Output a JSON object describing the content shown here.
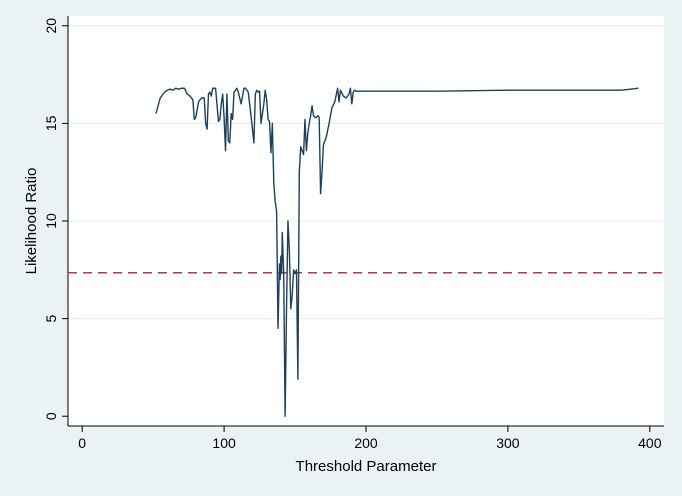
{
  "chart_data": {
    "type": "line",
    "title": "",
    "xlabel": "Threshold Parameter",
    "ylabel": "Likelihood Ratio",
    "xlim": [
      -10,
      410
    ],
    "ylim": [
      -0.5,
      20.5
    ],
    "xticks": [
      0,
      100,
      200,
      300,
      400
    ],
    "yticks": [
      0,
      5,
      10,
      15,
      20
    ],
    "xtick_labels": [
      "0",
      "100",
      "200",
      "300",
      "400"
    ],
    "ytick_labels": [
      "0",
      "5",
      "10",
      "15",
      "20"
    ],
    "grid": "horizontal",
    "legend": "none",
    "reference_line": {
      "y": 7.35,
      "style": "dashed",
      "color": "#c0324a"
    },
    "colors": {
      "series": "#1f3f5a",
      "background": "#eaf2f3",
      "plot_area": "#ffffff",
      "grid": "#e3eef0"
    },
    "series": [
      {
        "x": [
          52,
          55,
          58,
          60,
          62,
          64,
          66,
          68,
          70,
          72,
          74,
          76,
          78,
          79,
          80,
          82,
          84,
          86,
          87,
          88,
          89,
          90,
          91,
          92,
          94,
          96,
          97,
          98,
          99,
          100,
          101,
          102,
          103,
          104,
          105,
          106,
          107,
          108,
          109,
          110,
          112,
          114,
          115,
          116,
          117,
          118,
          120,
          121,
          122,
          123,
          124,
          125,
          126,
          127,
          128,
          129,
          130,
          131,
          132,
          133,
          134,
          135,
          136,
          137,
          138,
          139,
          139.5,
          140,
          140.5,
          141,
          142,
          143,
          144,
          145,
          146,
          147,
          148,
          149,
          150,
          151,
          152,
          153,
          154,
          155,
          156,
          157,
          158,
          159,
          160,
          161,
          162,
          163,
          164,
          165,
          166,
          167,
          168,
          169,
          170,
          171,
          172,
          174,
          176,
          178,
          180,
          181,
          182,
          184,
          186,
          188,
          189,
          190,
          191,
          192,
          193,
          200,
          250,
          300,
          350,
          380,
          392
        ],
        "y": [
          15.5,
          16.3,
          16.6,
          16.7,
          16.75,
          16.7,
          16.8,
          16.75,
          16.8,
          16.8,
          16.5,
          16.4,
          16.2,
          15.2,
          15.3,
          16.1,
          16.3,
          16.3,
          15.0,
          14.7,
          16.5,
          16.6,
          16.4,
          16.8,
          16.8,
          15.1,
          15.2,
          16.0,
          16.5,
          15.3,
          13.6,
          16.5,
          14.1,
          14.0,
          15.5,
          15.2,
          16.6,
          16.7,
          16.8,
          16.6,
          16.0,
          16.8,
          16.8,
          16.7,
          16.6,
          16.0,
          14.7,
          14.0,
          16.5,
          16.7,
          16.6,
          16.65,
          15.0,
          15.5,
          16.0,
          16.7,
          16.2,
          15.2,
          15.1,
          13.5,
          15.0,
          12.0,
          11.0,
          10.5,
          4.5,
          7.8,
          7.0,
          8.2,
          7.3,
          9.4,
          7.3,
          0.0,
          5.5,
          10.0,
          8.5,
          5.5,
          6.2,
          7.5,
          7.3,
          7.5,
          1.9,
          12.5,
          13.8,
          13.6,
          13.4,
          15.2,
          13.6,
          14.5,
          15.0,
          15.4,
          15.9,
          15.4,
          15.3,
          15.3,
          15.4,
          15.3,
          11.4,
          12.5,
          13.9,
          14.1,
          14.3,
          15.0,
          15.8,
          16.1,
          16.8,
          16.1,
          16.7,
          16.4,
          16.3,
          16.5,
          16.8,
          16.0,
          16.6,
          16.7,
          16.65,
          16.65,
          16.65,
          16.7,
          16.7,
          16.7,
          16.8
        ]
      }
    ]
  }
}
